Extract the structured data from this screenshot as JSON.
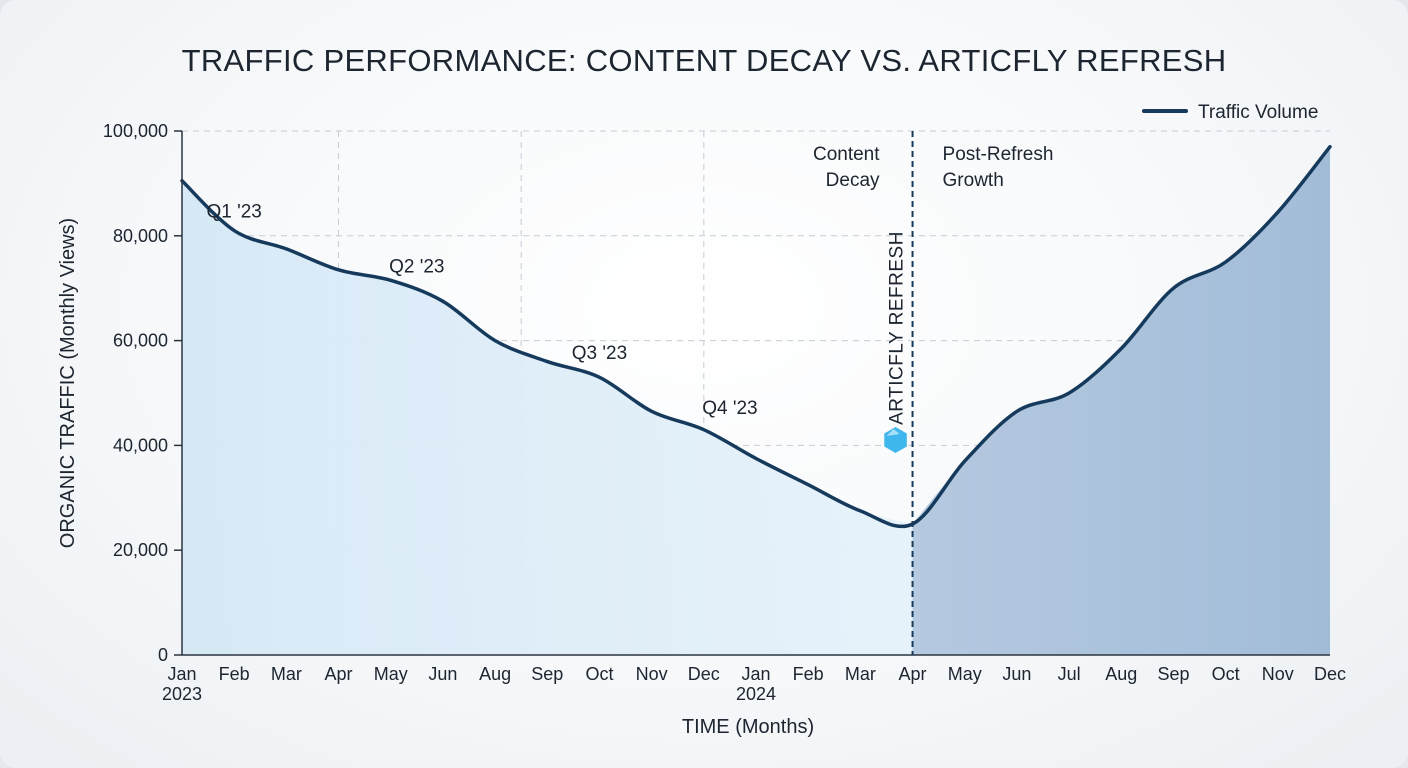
{
  "chart_data": {
    "type": "area",
    "title": "TRAFFIC PERFORMANCE: CONTENT DECAY VS. ARTICFLY REFRESH",
    "xlabel": "TIME (Months)",
    "ylabel": "ORGANIC TRAFFIC (Monthly Views)",
    "ylim": [
      0,
      100000
    ],
    "yticks": [
      0,
      20000,
      40000,
      60000,
      80000,
      100000
    ],
    "ytick_labels": [
      "0",
      "20,000",
      "40,000",
      "60,000",
      "80,000",
      "100,000"
    ],
    "categories": [
      "Jan",
      "Feb",
      "Mar",
      "Apr",
      "May",
      "Jun",
      "Aug",
      "Sep",
      "Oct",
      "Nov",
      "Dec",
      "Jan",
      "Feb",
      "Mar",
      "Apr",
      "May",
      "Jun",
      "Jul",
      "Aug",
      "Sep",
      "Oct",
      "Nov",
      "Dec"
    ],
    "year_labels": [
      {
        "index": 0,
        "label": "2023"
      },
      {
        "index": 11,
        "label": "2024"
      }
    ],
    "series": [
      {
        "name": "Traffic Volume",
        "color": "#163a5c",
        "values": [
          90500,
          81000,
          77500,
          73500,
          71500,
          67500,
          60000,
          56000,
          53000,
          46500,
          43000,
          37500,
          32500,
          27500,
          25000,
          37000,
          46500,
          50000,
          58500,
          70000,
          75000,
          84500,
          97000
        ]
      }
    ],
    "annotations": [
      {
        "text": "Q1 '23",
        "x_index": 1,
        "y": 83500
      },
      {
        "text": "Q2 '23",
        "x_index": 4.5,
        "y": 73000
      },
      {
        "text": "Q3 '23",
        "x_index": 8,
        "y": 56500
      },
      {
        "text": "Q4 '23",
        "x_index": 10.5,
        "y": 46000
      }
    ],
    "marker": {
      "label": "ARTICFLY REFRESH",
      "x_index": 14,
      "icon": "hexagon-icon",
      "color": "#3fb6ec"
    },
    "region_labels": {
      "before": [
        "Content",
        "Decay"
      ],
      "after": [
        "Post-Refresh",
        "Growth"
      ]
    },
    "fill_colors": {
      "before": "#d9ebf7",
      "after": "#a9c1dc"
    },
    "grid": true,
    "legend_position": "top-right"
  }
}
